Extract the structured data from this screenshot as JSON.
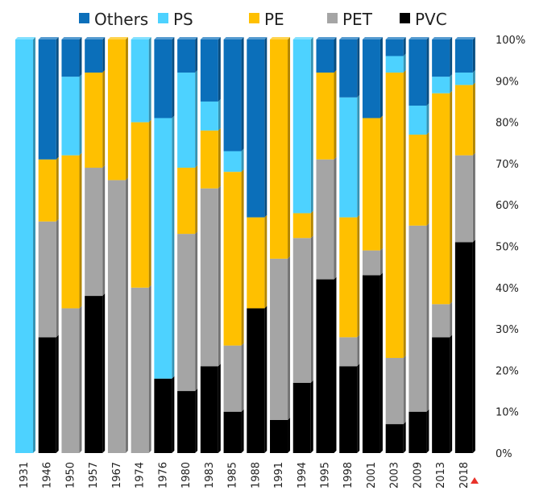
{
  "chart_data": {
    "type": "bar",
    "stacked": true,
    "percent": true,
    "title": "",
    "xlabel": "",
    "ylabel": "",
    "ylim": [
      0,
      100
    ],
    "yticks": [
      "0%",
      "10%",
      "20%",
      "30%",
      "40%",
      "50%",
      "60%",
      "70%",
      "80%",
      "90%",
      "100%"
    ],
    "grid": false,
    "legend_position": "top",
    "categories": [
      "1931",
      "1946",
      "1950",
      "1957",
      "1967",
      "1974",
      "1976",
      "1980",
      "1983",
      "1985",
      "1988",
      "1991",
      "1994",
      "1995",
      "1998",
      "2001",
      "2003",
      "2009",
      "2013",
      "2018"
    ],
    "series": [
      {
        "name": "PVC",
        "color": "#000000",
        "values": [
          0,
          28,
          0,
          38,
          0,
          0,
          18,
          15,
          21,
          10,
          35,
          8,
          17,
          42,
          21,
          43,
          7,
          10,
          28,
          51
        ]
      },
      {
        "name": "PET",
        "color": "#a5a5a5",
        "values": [
          0,
          28,
          35,
          31,
          66,
          40,
          0,
          38,
          43,
          16,
          0,
          39,
          35,
          29,
          7,
          6,
          16,
          45,
          8,
          21
        ]
      },
      {
        "name": "PE",
        "color": "#ffc000",
        "values": [
          0,
          15,
          37,
          23,
          34,
          40,
          0,
          16,
          14,
          42,
          22,
          53,
          6,
          21,
          29,
          32,
          69,
          22,
          51,
          17
        ]
      },
      {
        "name": "PS",
        "color": "#4dd2ff",
        "values": [
          100,
          0,
          19,
          0,
          0,
          20,
          63,
          23,
          7,
          5,
          0,
          0,
          42,
          0,
          29,
          0,
          4,
          7,
          4,
          3
        ]
      },
      {
        "name": "Others",
        "color": "#0b6fba",
        "values": [
          0,
          29,
          9,
          8,
          0,
          0,
          19,
          8,
          15,
          27,
          43,
          0,
          0,
          8,
          14,
          19,
          4,
          16,
          9,
          8
        ]
      }
    ],
    "legend_order": [
      "Others",
      "PS",
      "PE",
      "PET",
      "PVC"
    ],
    "marker_color": "#e8322a"
  }
}
